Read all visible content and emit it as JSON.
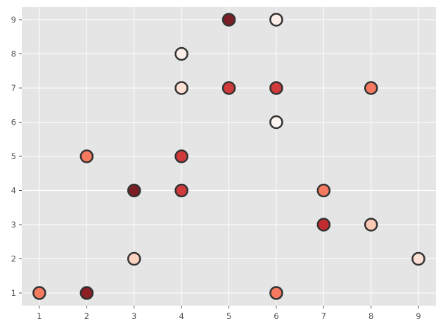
{
  "chart_data": {
    "type": "scatter",
    "title": "",
    "xlabel": "",
    "ylabel": "",
    "xlim": [
      0.63,
      9.37
    ],
    "ylim": [
      0.63,
      9.37
    ],
    "xticks": [
      1,
      2,
      3,
      4,
      5,
      6,
      7,
      8,
      9
    ],
    "yticks": [
      1,
      2,
      3,
      4,
      5,
      6,
      7,
      8,
      9
    ],
    "grid": true,
    "background": "#e5e5e5",
    "grid_color": "#ffffff",
    "marker_edge_color": "#333333",
    "points": [
      {
        "x": 5,
        "y": 9,
        "color": "#7a1d24"
      },
      {
        "x": 6,
        "y": 9,
        "color": "#fdeee8"
      },
      {
        "x": 4,
        "y": 8,
        "color": "#fdeee8"
      },
      {
        "x": 4,
        "y": 7,
        "color": "#fde0d5"
      },
      {
        "x": 5,
        "y": 7,
        "color": "#d13a3b"
      },
      {
        "x": 6,
        "y": 7,
        "color": "#d13a3b"
      },
      {
        "x": 8,
        "y": 7,
        "color": "#f57a60"
      },
      {
        "x": 6,
        "y": 6,
        "color": "#fff5f0"
      },
      {
        "x": 2,
        "y": 5,
        "color": "#f57a60"
      },
      {
        "x": 4,
        "y": 5,
        "color": "#d13a3b"
      },
      {
        "x": 3,
        "y": 4,
        "color": "#7a1d24"
      },
      {
        "x": 4,
        "y": 4,
        "color": "#d13a3b"
      },
      {
        "x": 7,
        "y": 4,
        "color": "#f57a60"
      },
      {
        "x": 7,
        "y": 3,
        "color": "#c32d2f"
      },
      {
        "x": 8,
        "y": 3,
        "color": "#fcc9b4"
      },
      {
        "x": 3,
        "y": 2,
        "color": "#fcd4c2"
      },
      {
        "x": 9,
        "y": 2,
        "color": "#fde0d5"
      },
      {
        "x": 1,
        "y": 1,
        "color": "#f57a60"
      },
      {
        "x": 2,
        "y": 1,
        "color": "#8c1f24"
      },
      {
        "x": 6,
        "y": 1,
        "color": "#f57a60"
      }
    ]
  }
}
